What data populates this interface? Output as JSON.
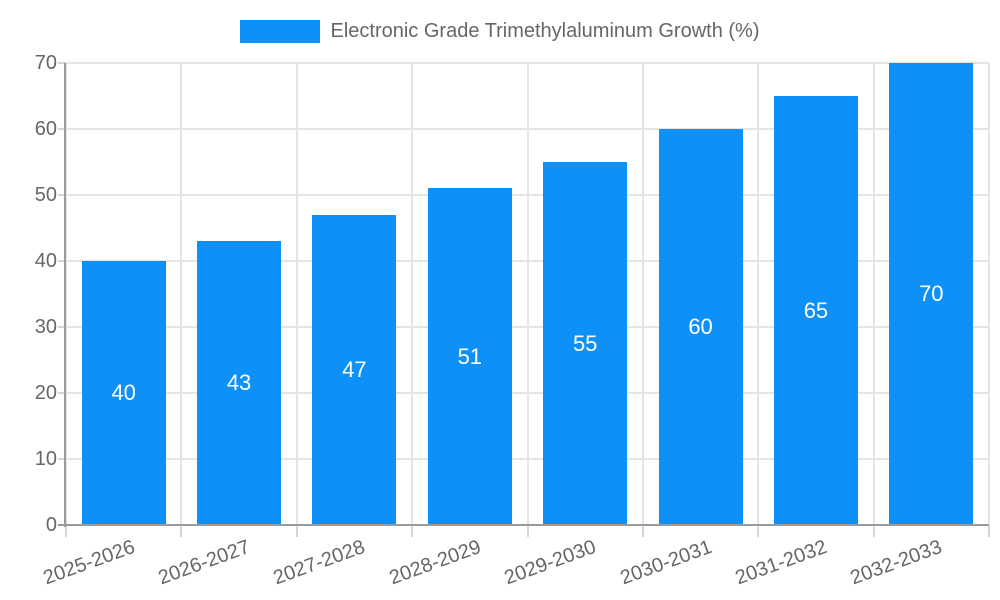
{
  "chart_data": {
    "type": "bar",
    "title": "",
    "legend": "Electronic Grade Trimethylaluminum Growth (%)",
    "categories": [
      "2025-2026",
      "2026-2027",
      "2027-2028",
      "2028-2029",
      "2029-2030",
      "2030-2031",
      "2031-2032",
      "2032-2033"
    ],
    "values": [
      40,
      43,
      47,
      51,
      55,
      60,
      65,
      70
    ],
    "ylim": [
      0,
      70
    ],
    "ytick_step": 10,
    "yticks": [
      0,
      10,
      20,
      30,
      40,
      50,
      60,
      70
    ],
    "grid": true,
    "legend_position": "top-center",
    "bar_label_position": "inside-middle",
    "colors": {
      "bar": "#0d90f7",
      "bar_label": "#ffffff",
      "axis_text": "#666666",
      "gridline": "#e5e5e5",
      "tick": "#d6d6d6",
      "axis_line": "#9a9a9a",
      "background": "#ffffff"
    }
  }
}
